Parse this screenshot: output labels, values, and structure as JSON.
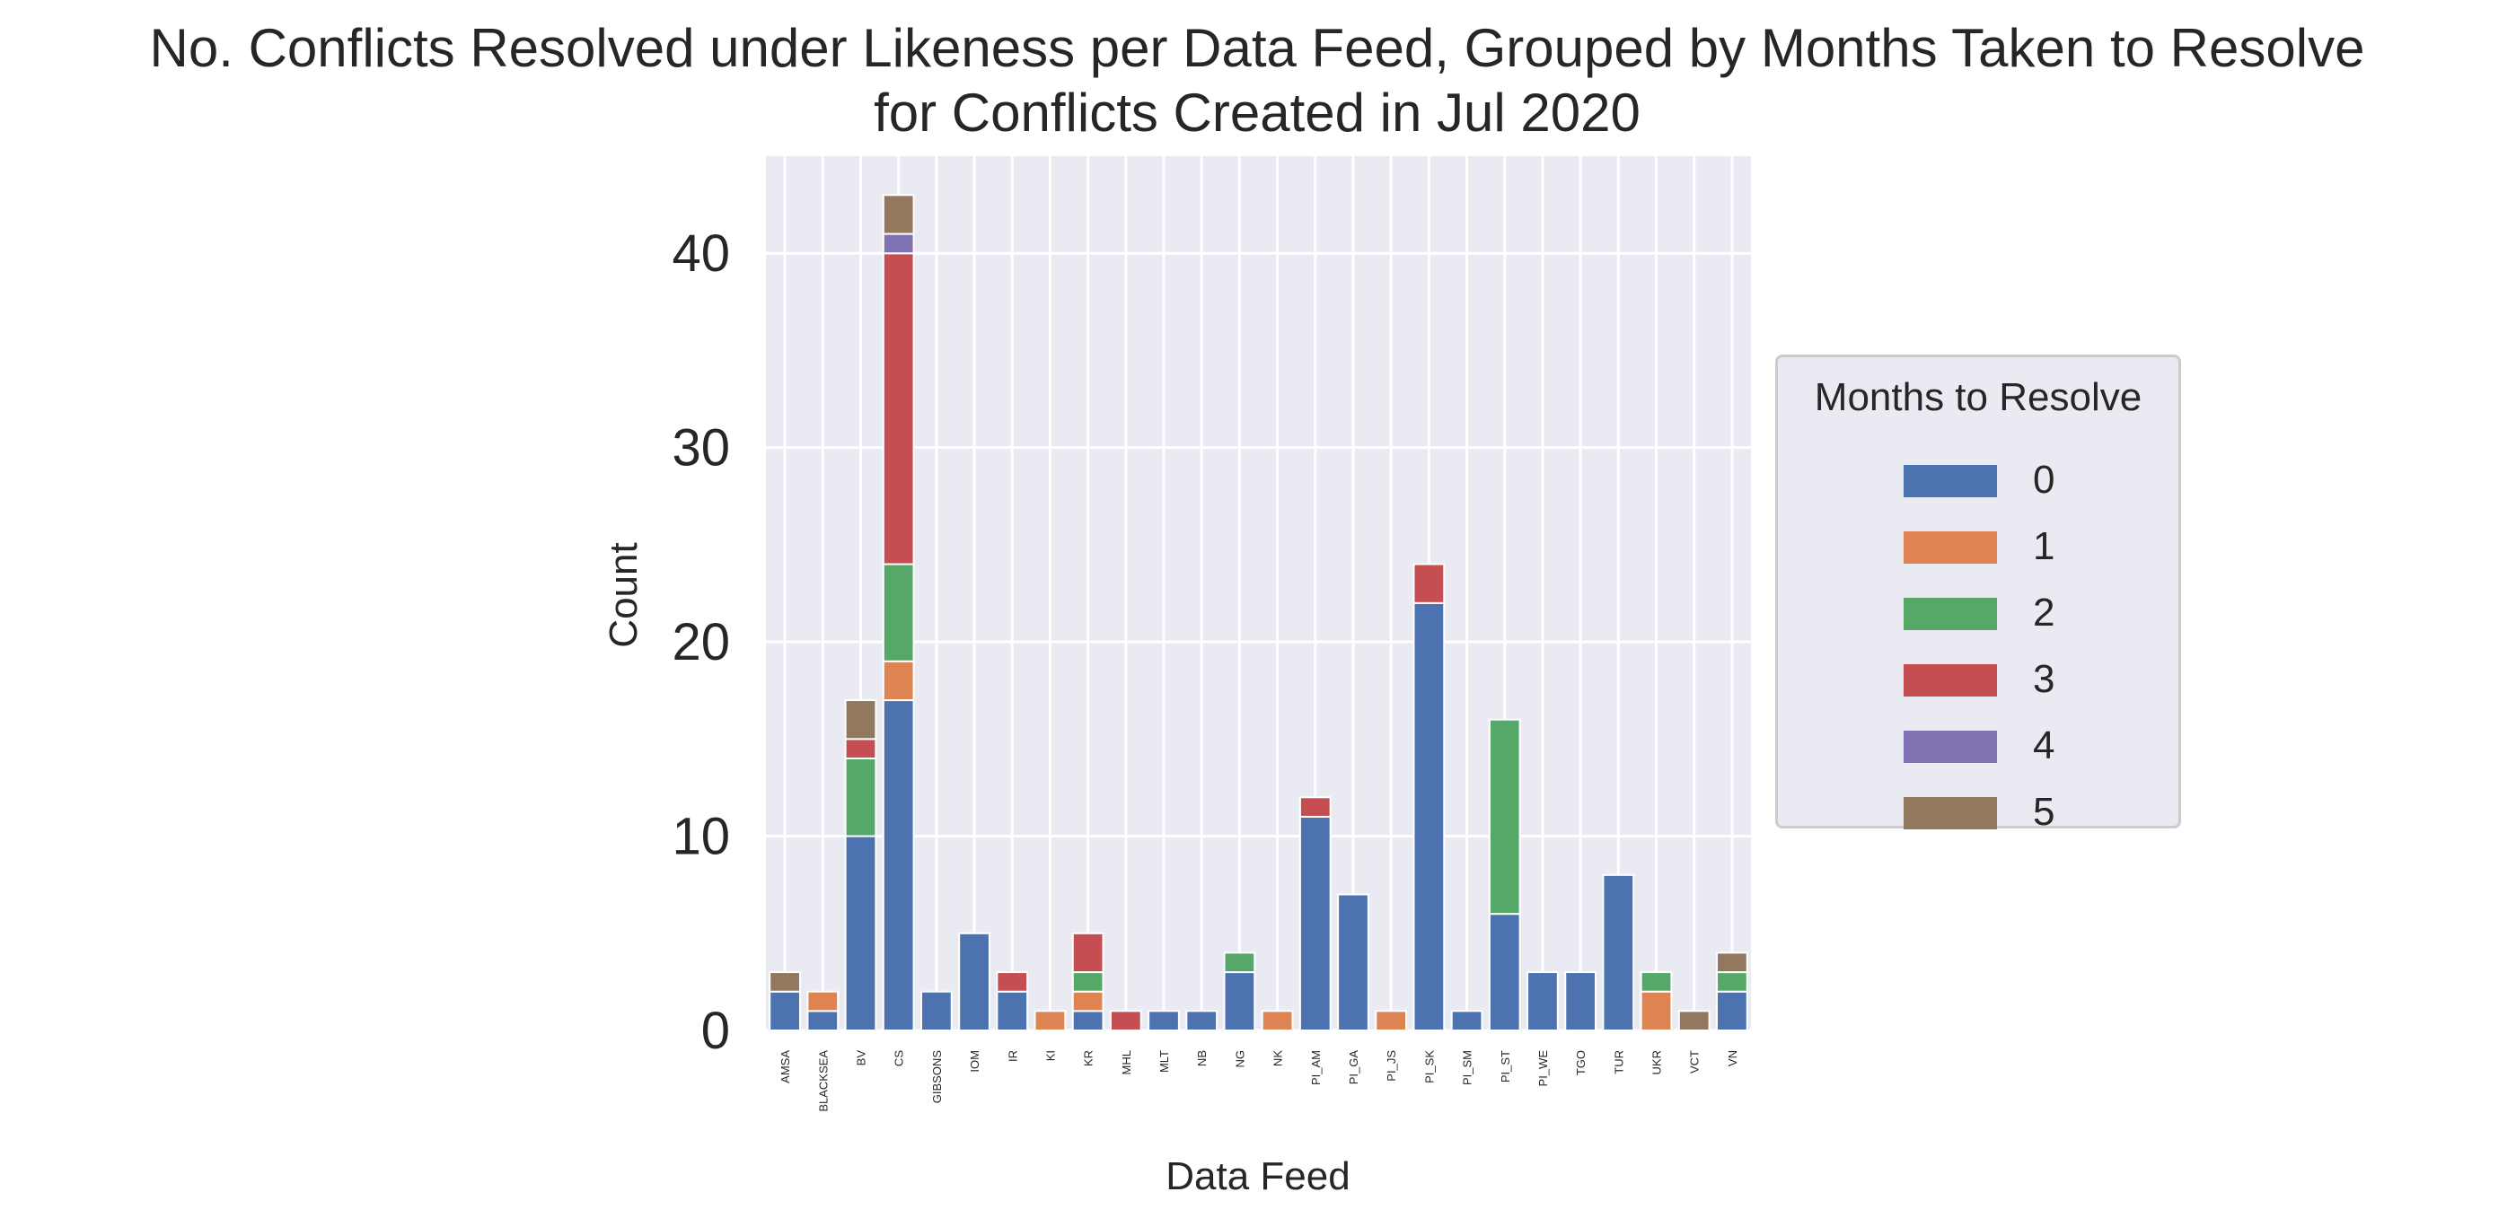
{
  "chart_data": {
    "type": "bar",
    "stacked": true,
    "title": "No. Conflicts Resolved under Likeness per Data Feed, Grouped by Months Taken to Resolve",
    "subtitle": "for Conflicts Created in Jul 2020",
    "xlabel": "Data Feed",
    "ylabel": "Count",
    "ylim": [
      0,
      45
    ],
    "yticks": [
      0,
      10,
      20,
      30,
      40
    ],
    "grid": true,
    "legend": {
      "title": "Months to Resolve",
      "placement": "outside-right"
    },
    "categories": [
      "AMSA",
      "BLACKSEA",
      "BV",
      "CS",
      "GIBSONS",
      "IOM",
      "IR",
      "KI",
      "KR",
      "MHL",
      "MLT",
      "NB",
      "NG",
      "NK",
      "PI_AM",
      "PI_GA",
      "PI_JS",
      "PI_SK",
      "PI_SM",
      "PI_ST",
      "PI_WE",
      "TGO",
      "TUR",
      "UKR",
      "VCT",
      "VN"
    ],
    "series": [
      {
        "name": "0",
        "color": "#4c72b0",
        "values": [
          2,
          1,
          10,
          17,
          2,
          5,
          2,
          0,
          1,
          0,
          1,
          1,
          3,
          0,
          11,
          7,
          0,
          22,
          1,
          6,
          3,
          3,
          8,
          0,
          0,
          2
        ]
      },
      {
        "name": "1",
        "color": "#dd8452",
        "values": [
          0,
          1,
          0,
          2,
          0,
          0,
          0,
          1,
          1,
          0,
          0,
          0,
          0,
          1,
          0,
          0,
          1,
          0,
          0,
          0,
          0,
          0,
          0,
          2,
          0,
          0
        ]
      },
      {
        "name": "2",
        "color": "#55a868",
        "values": [
          0,
          0,
          4,
          5,
          0,
          0,
          0,
          0,
          1,
          0,
          0,
          0,
          1,
          0,
          0,
          0,
          0,
          0,
          0,
          10,
          0,
          0,
          0,
          1,
          0,
          1
        ]
      },
      {
        "name": "3",
        "color": "#c44e52",
        "values": [
          0,
          0,
          1,
          16,
          0,
          0,
          1,
          0,
          2,
          1,
          0,
          0,
          0,
          0,
          1,
          0,
          0,
          2,
          0,
          0,
          0,
          0,
          0,
          0,
          0,
          0
        ]
      },
      {
        "name": "4",
        "color": "#8172b3",
        "values": [
          0,
          0,
          0,
          1,
          0,
          0,
          0,
          0,
          0,
          0,
          0,
          0,
          0,
          0,
          0,
          0,
          0,
          0,
          0,
          0,
          0,
          0,
          0,
          0,
          0,
          0
        ]
      },
      {
        "name": "5",
        "color": "#937860",
        "values": [
          1,
          0,
          2,
          2,
          0,
          0,
          0,
          0,
          0,
          0,
          0,
          0,
          0,
          0,
          0,
          0,
          0,
          0,
          0,
          0,
          0,
          0,
          0,
          0,
          1,
          1
        ]
      }
    ],
    "colors": {
      "plot_background": "#eaeaf2",
      "grid": "#ffffff",
      "text": "#262626"
    }
  }
}
